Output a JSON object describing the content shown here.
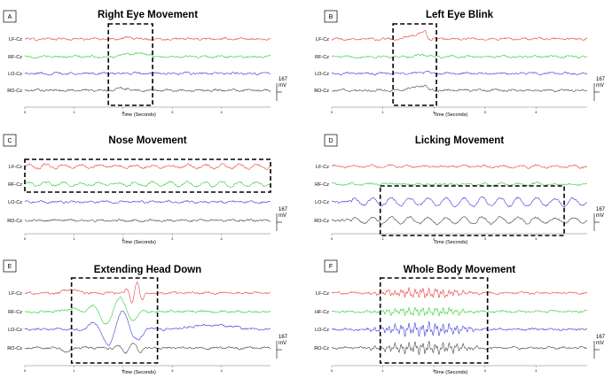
{
  "chart_data": [
    {
      "type": "line",
      "panel_letter": "A",
      "title": "Right Eye Movement",
      "xlabel": "Time (Seconds)",
      "x_ticks": [
        "0",
        "1",
        "2",
        "3",
        "4"
      ],
      "xlim": [
        0,
        5
      ],
      "channels": [
        {
          "name": "LF-Cz",
          "color": "#e8403c",
          "events": [
            [
              1.8,
              2.4,
              "bump",
              0.3
            ]
          ]
        },
        {
          "name": "RF-Cz",
          "color": "#33cc33",
          "events": [
            [
              1.85,
              2.6,
              "step",
              1.0
            ]
          ]
        },
        {
          "name": "LO-Cz",
          "color": "#3a3ad8",
          "events": []
        },
        {
          "name": "RO-Cz",
          "color": "#444444",
          "events": [
            [
              1.8,
              2.2,
              "bump",
              0.6
            ]
          ]
        }
      ],
      "highlight": [
        1.7,
        2.6
      ],
      "scale_bar": {
        "value": "167",
        "unit": "mV"
      }
    },
    {
      "type": "line",
      "panel_letter": "B",
      "title": "Left Eye Blink",
      "xlabel": "Time (Seconds)",
      "x_ticks": [
        "0",
        "1",
        "2",
        "3",
        "4"
      ],
      "xlim": [
        0,
        5
      ],
      "channels": [
        {
          "name": "LF-Cz",
          "color": "#e8403c",
          "events": [
            [
              1.2,
              1.95,
              "blink",
              2.2
            ]
          ]
        },
        {
          "name": "RF-Cz",
          "color": "#33cc33",
          "events": [
            [
              1.6,
              2.0,
              "bump",
              0.5
            ]
          ]
        },
        {
          "name": "LO-Cz",
          "color": "#3a3ad8",
          "events": [
            [
              1.6,
              2.0,
              "bump",
              0.4
            ]
          ]
        },
        {
          "name": "RO-Cz",
          "color": "#444444",
          "events": [
            [
              1.2,
              1.95,
              "blink",
              1.6
            ]
          ]
        }
      ],
      "highlight": [
        1.2,
        2.05
      ],
      "scale_bar": {
        "value": "167",
        "unit": "mV"
      }
    },
    {
      "type": "line",
      "panel_letter": "C",
      "title": "Nose Movement",
      "xlabel": "Time (Seconds)",
      "x_ticks": [
        "0",
        "1",
        "2",
        "3",
        "4"
      ],
      "xlim": [
        0,
        5
      ],
      "channels": [
        {
          "name": "LF-Cz",
          "color": "#e8403c",
          "events": [
            [
              0.0,
              5.0,
              "osc",
              0.9
            ]
          ]
        },
        {
          "name": "RF-Cz",
          "color": "#33cc33",
          "events": [
            [
              0.0,
              5.0,
              "osc",
              1.0
            ]
          ]
        },
        {
          "name": "LO-Cz",
          "color": "#3a3ad8",
          "events": []
        },
        {
          "name": "RO-Cz",
          "color": "#444444",
          "events": []
        }
      ],
      "highlight": [
        0.0,
        5.0
      ],
      "scale_bar": {
        "value": "167",
        "unit": "mV"
      }
    },
    {
      "type": "line",
      "panel_letter": "D",
      "title": "Licking Movement",
      "xlabel": "Time (Seconds)",
      "x_ticks": [
        "0",
        "1",
        "2",
        "3",
        "4"
      ],
      "xlim": [
        0,
        5
      ],
      "channels": [
        {
          "name": "LF-Cz",
          "color": "#e8403c",
          "events": [
            [
              0.0,
              5.0,
              "osc",
              0.4
            ]
          ]
        },
        {
          "name": "RF-Cz",
          "color": "#33cc33",
          "events": [
            [
              0.0,
              5.0,
              "osc",
              0.2
            ]
          ]
        },
        {
          "name": "LO-Cz",
          "color": "#3a3ad8",
          "events": [
            [
              0.4,
              5.0,
              "osc",
              2.0
            ]
          ]
        },
        {
          "name": "RO-Cz",
          "color": "#444444",
          "events": [
            [
              0.4,
              5.0,
              "osc",
              1.6
            ]
          ]
        }
      ],
      "highlight": [
        0.95,
        4.55
      ],
      "scale_bar": {
        "value": "167",
        "unit": "mV"
      }
    },
    {
      "type": "line",
      "panel_letter": "E",
      "title": "Extending Head Down",
      "xlabel": "Time (Seconds)",
      "x_ticks": [
        "0",
        "1",
        "2",
        "3",
        "4"
      ],
      "xlim": [
        0,
        5
      ],
      "channels": [
        {
          "name": "LF-Cz",
          "color": "#e8403c",
          "events": [
            [
              0.7,
              1.2,
              "bump",
              1.0
            ],
            [
              2.0,
              2.5,
              "swing",
              3.0
            ]
          ]
        },
        {
          "name": "RF-Cz",
          "color": "#33cc33",
          "events": [
            [
              0.7,
              1.2,
              "bump",
              0.8
            ],
            [
              1.2,
              2.5,
              "swing",
              4.0
            ]
          ]
        },
        {
          "name": "LO-Cz",
          "color": "#3a3ad8",
          "events": [
            [
              1.2,
              2.6,
              "swing",
              5.0
            ],
            [
              3.0,
              4.6,
              "bump",
              1.2
            ]
          ]
        },
        {
          "name": "RO-Cz",
          "color": "#444444",
          "events": [
            [
              0.7,
              1.0,
              "dip",
              1.0
            ],
            [
              1.8,
              2.5,
              "swing",
              1.5
            ]
          ]
        }
      ],
      "highlight": [
        0.95,
        2.7
      ],
      "scale_bar": {
        "value": "167",
        "unit": "mV"
      }
    },
    {
      "type": "line",
      "panel_letter": "F",
      "title": "Whole Body Movement",
      "xlabel": "Time (Seconds)",
      "x_ticks": [
        "0",
        "1",
        "2",
        "3",
        "4"
      ],
      "xlim": [
        0,
        5
      ],
      "channels": [
        {
          "name": "LF-Cz",
          "color": "#e8403c",
          "events": [
            [
              0.6,
              3.0,
              "burst",
              1.8
            ]
          ]
        },
        {
          "name": "HF-Cz",
          "color": "#33cc33",
          "events": [
            [
              0.6,
              3.0,
              "burst",
              1.6
            ]
          ]
        },
        {
          "name": "LO-Cz",
          "color": "#3a3ad8",
          "events": [
            [
              0.6,
              3.0,
              "burst",
              2.5
            ]
          ]
        },
        {
          "name": "RO-Cz",
          "color": "#444444",
          "events": [
            [
              0.6,
              3.0,
              "burst",
              2.2
            ]
          ]
        }
      ],
      "highlight": [
        0.95,
        3.05
      ],
      "scale_bar": {
        "value": "167",
        "unit": "mV"
      }
    }
  ]
}
